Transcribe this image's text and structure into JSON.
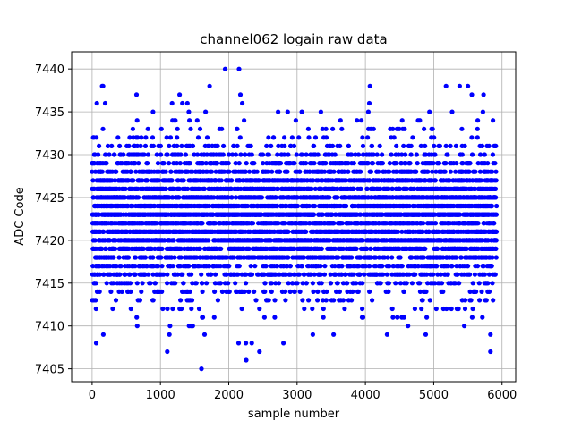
{
  "chart_data": {
    "type": "scatter",
    "title": "channel062 logain raw data",
    "xlabel": "sample number",
    "ylabel": "ADC Code",
    "xlim": [
      -300,
      6200
    ],
    "ylim": [
      7403.5,
      7442.0
    ],
    "xticks": [
      0,
      1000,
      2000,
      3000,
      4000,
      5000,
      6000
    ],
    "yticks": [
      7405,
      7410,
      7415,
      7420,
      7425,
      7430,
      7435,
      7440
    ],
    "grid": true,
    "marker_color": "#0000ff",
    "series": [
      {
        "n_samples": 5920,
        "value_range": [
          7405,
          7440
        ],
        "dense_band": [
          7413,
          7431
        ],
        "outliers": [
          {
            "x": 160,
            "y": 7438
          },
          {
            "x": 650,
            "y": 7437
          },
          {
            "x": 1280,
            "y": 7437
          },
          {
            "x": 1600,
            "y": 7405
          },
          {
            "x": 2150,
            "y": 7440
          },
          {
            "x": 2170,
            "y": 7437
          },
          {
            "x": 2450,
            "y": 7407
          },
          {
            "x": 5180,
            "y": 7438
          },
          {
            "x": 5380,
            "y": 7438
          },
          {
            "x": 5500,
            "y": 7438
          },
          {
            "x": 5730,
            "y": 7437
          },
          {
            "x": 5830,
            "y": 7407
          },
          {
            "x": 60,
            "y": 7408
          },
          {
            "x": 2250,
            "y": 7408
          },
          {
            "x": 2800,
            "y": 7408
          },
          {
            "x": 660,
            "y": 7410
          },
          {
            "x": 1420,
            "y": 7410
          },
          {
            "x": 3230,
            "y": 7409
          },
          {
            "x": 5830,
            "y": 7409
          }
        ]
      }
    ]
  }
}
